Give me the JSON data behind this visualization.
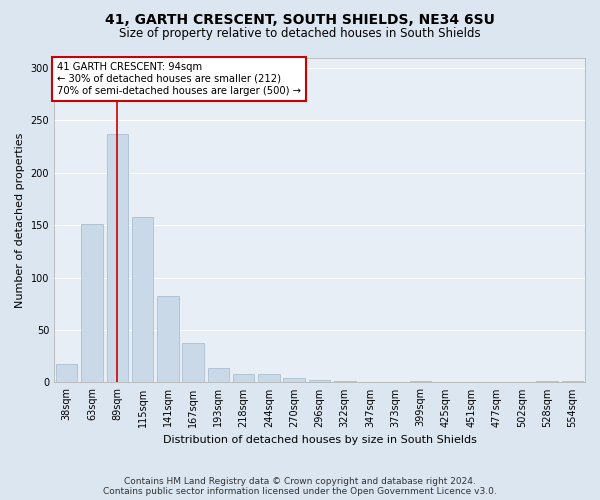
{
  "title": "41, GARTH CRESCENT, SOUTH SHIELDS, NE34 6SU",
  "subtitle": "Size of property relative to detached houses in South Shields",
  "xlabel": "Distribution of detached houses by size in South Shields",
  "ylabel": "Number of detached properties",
  "categories": [
    "38sqm",
    "63sqm",
    "89sqm",
    "115sqm",
    "141sqm",
    "167sqm",
    "193sqm",
    "218sqm",
    "244sqm",
    "270sqm",
    "296sqm",
    "322sqm",
    "347sqm",
    "373sqm",
    "399sqm",
    "425sqm",
    "451sqm",
    "477sqm",
    "502sqm",
    "528sqm",
    "554sqm"
  ],
  "values": [
    18,
    151,
    237,
    158,
    82,
    38,
    14,
    8,
    8,
    4,
    2,
    1,
    0,
    0,
    1,
    0,
    0,
    0,
    0,
    1,
    1
  ],
  "bar_color": "#c9d9e8",
  "bar_edge_color": "#a0b8cc",
  "vline_x": 2,
  "vline_color": "#cc0000",
  "annotation_text": "41 GARTH CRESCENT: 94sqm\n← 30% of detached houses are smaller (212)\n70% of semi-detached houses are larger (500) →",
  "annotation_box_color": "#ffffff",
  "annotation_box_edge": "#cc0000",
  "ylim": [
    0,
    310
  ],
  "yticks": [
    0,
    50,
    100,
    150,
    200,
    250,
    300
  ],
  "footer_line1": "Contains HM Land Registry data © Crown copyright and database right 2024.",
  "footer_line2": "Contains public sector information licensed under the Open Government Licence v3.0.",
  "bg_color": "#dce6f0",
  "plot_bg_color": "#e8eef5",
  "title_fontsize": 10,
  "subtitle_fontsize": 8.5,
  "axis_label_fontsize": 8,
  "tick_fontsize": 7,
  "footer_fontsize": 6.5,
  "grid_color": "#ffffff",
  "font_family": "DejaVu Sans"
}
